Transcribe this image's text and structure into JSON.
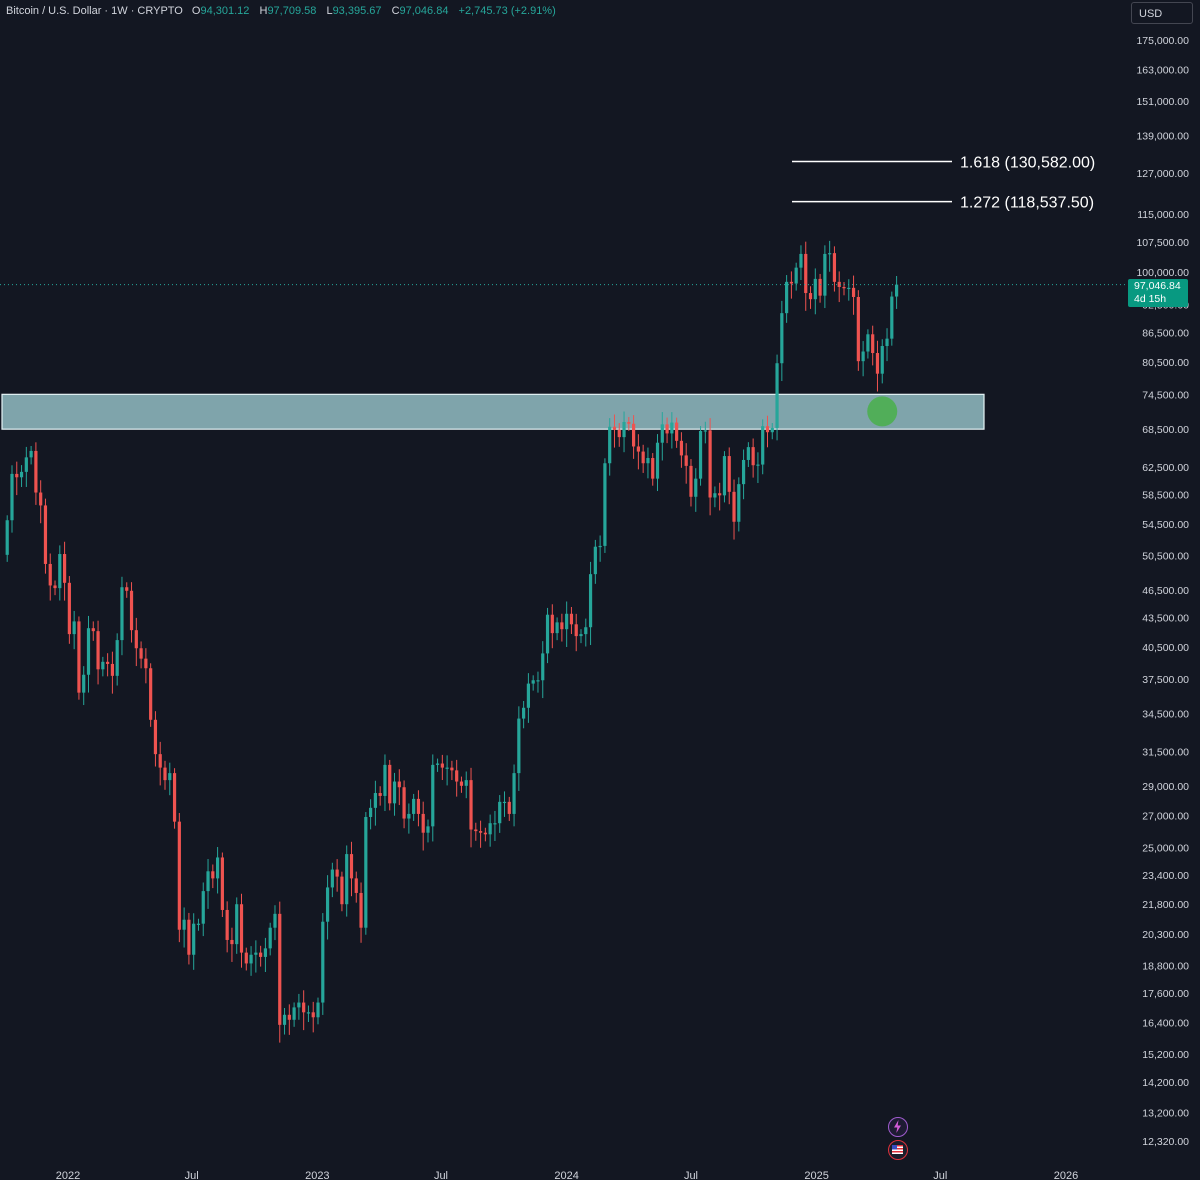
{
  "header": {
    "symbol": "Bitcoin / U.S. Dollar · 1W · CRYPTO",
    "o_label": "O",
    "o_value": "94,301.12",
    "h_label": "H",
    "h_value": "97,709.58",
    "l_label": "L",
    "l_value": "93,395.67",
    "c_label": "C",
    "c_value": "97,046.84",
    "change": "+2,745.73 (+2.91%)"
  },
  "currency_button": "USD",
  "price_tag": {
    "price": "97,046.84",
    "countdown": "4d 15h"
  },
  "icons": [
    "lightning-icon",
    "us-flag-icon"
  ],
  "colors": {
    "background": "#131722",
    "up": "#26a69a",
    "down": "#ef5350",
    "zone": "#a9dbe0",
    "marker": "#4caf50",
    "text": "#d1d4dc"
  },
  "chart_data": {
    "type": "candlestick",
    "title": "",
    "xlabel": "",
    "ylabel": "",
    "y_scale": "log",
    "ylim": [
      11800,
      182000
    ],
    "grid": false,
    "y_ticks": [
      "175,000.00",
      "163,000.00",
      "151,000.00",
      "139,000.00",
      "127,000.00",
      "115,000.00",
      "107,500.00",
      "100,000.00",
      "92,500.00",
      "86,500.00",
      "80,500.00",
      "74,500.00",
      "68,500.00",
      "62,500.00",
      "58,500.00",
      "54,500.00",
      "50,500.00",
      "46,500.00",
      "43,500.00",
      "40,500.00",
      "37,500.00",
      "34,500.00",
      "31,500.00",
      "29,000.00",
      "27,000.00",
      "25,000.00",
      "23,400.00",
      "21,800.00",
      "20,300.00",
      "18,800.00",
      "17,600.00",
      "16,400.00",
      "15,200.00",
      "14,200.00",
      "13,200.00",
      "12,320.00"
    ],
    "x_ticks": [
      {
        "label": "2022",
        "date": "2022-01-01"
      },
      {
        "label": "Jul",
        "date": "2022-07-01"
      },
      {
        "label": "2023",
        "date": "2023-01-01"
      },
      {
        "label": "Jul",
        "date": "2023-07-01"
      },
      {
        "label": "2024",
        "date": "2024-01-01"
      },
      {
        "label": "Jul",
        "date": "2024-07-01"
      },
      {
        "label": "2025",
        "date": "2025-01-01"
      },
      {
        "label": "Jul",
        "date": "2025-07-01"
      },
      {
        "label": "2026",
        "date": "2026-01-01"
      }
    ],
    "fib_levels": [
      {
        "label": "1.618 (130,582.00)",
        "value": 130582
      },
      {
        "label": "1.272 (118,537.50)",
        "value": 118537.5
      }
    ],
    "support_zone": {
      "low": 68500,
      "high": 74500
    },
    "last_price": 97046.84,
    "marker": {
      "date": "2025-04-07",
      "value": 71500
    },
    "series": [
      {
        "date": "2021-10-04",
        "close": 55000
      },
      {
        "date": "2021-10-11",
        "close": 61500
      },
      {
        "date": "2021-10-18",
        "close": 61000
      },
      {
        "date": "2021-10-25",
        "close": 61800
      },
      {
        "date": "2021-11-01",
        "close": 64000
      },
      {
        "date": "2021-11-08",
        "close": 65000
      },
      {
        "date": "2021-11-15",
        "close": 58800
      },
      {
        "date": "2021-11-22",
        "close": 57000
      },
      {
        "date": "2021-11-29",
        "close": 49500
      },
      {
        "date": "2021-12-06",
        "close": 47000
      },
      {
        "date": "2021-12-13",
        "close": 46700
      },
      {
        "date": "2021-12-20",
        "close": 50700
      },
      {
        "date": "2021-12-27",
        "close": 47300
      },
      {
        "date": "2022-01-03",
        "close": 41800
      },
      {
        "date": "2022-01-10",
        "close": 43100
      },
      {
        "date": "2022-01-17",
        "close": 36300
      },
      {
        "date": "2022-01-24",
        "close": 37900
      },
      {
        "date": "2022-01-31",
        "close": 42400
      },
      {
        "date": "2022-02-07",
        "close": 42100
      },
      {
        "date": "2022-02-14",
        "close": 38400
      },
      {
        "date": "2022-02-21",
        "close": 39100
      },
      {
        "date": "2022-02-28",
        "close": 38900
      },
      {
        "date": "2022-03-07",
        "close": 37800
      },
      {
        "date": "2022-03-14",
        "close": 41200
      },
      {
        "date": "2022-03-21",
        "close": 46800
      },
      {
        "date": "2022-03-28",
        "close": 46400
      },
      {
        "date": "2022-04-04",
        "close": 42200
      },
      {
        "date": "2022-04-11",
        "close": 40400
      },
      {
        "date": "2022-04-18",
        "close": 39400
      },
      {
        "date": "2022-04-25",
        "close": 38500
      },
      {
        "date": "2022-05-02",
        "close": 34000
      },
      {
        "date": "2022-05-09",
        "close": 31300
      },
      {
        "date": "2022-05-16",
        "close": 30300
      },
      {
        "date": "2022-05-23",
        "close": 29400
      },
      {
        "date": "2022-05-30",
        "close": 29900
      },
      {
        "date": "2022-06-06",
        "close": 26600
      },
      {
        "date": "2022-06-13",
        "close": 20500
      },
      {
        "date": "2022-06-20",
        "close": 21000
      },
      {
        "date": "2022-06-27",
        "close": 19300
      },
      {
        "date": "2022-07-04",
        "close": 20800
      },
      {
        "date": "2022-07-11",
        "close": 20800
      },
      {
        "date": "2022-07-18",
        "close": 22500
      },
      {
        "date": "2022-07-25",
        "close": 23600
      },
      {
        "date": "2022-08-01",
        "close": 23200
      },
      {
        "date": "2022-08-08",
        "close": 24400
      },
      {
        "date": "2022-08-15",
        "close": 21500
      },
      {
        "date": "2022-08-22",
        "close": 20000
      },
      {
        "date": "2022-08-29",
        "close": 19800
      },
      {
        "date": "2022-09-05",
        "close": 21800
      },
      {
        "date": "2022-09-12",
        "close": 19400
      },
      {
        "date": "2022-09-19",
        "close": 18900
      },
      {
        "date": "2022-09-26",
        "close": 19300
      },
      {
        "date": "2022-10-03",
        "close": 19400
      },
      {
        "date": "2022-10-10",
        "close": 19200
      },
      {
        "date": "2022-10-17",
        "close": 19600
      },
      {
        "date": "2022-10-24",
        "close": 20600
      },
      {
        "date": "2022-10-31",
        "close": 21300
      },
      {
        "date": "2022-11-07",
        "close": 16300
      },
      {
        "date": "2022-11-14",
        "close": 16700
      },
      {
        "date": "2022-11-21",
        "close": 16500
      },
      {
        "date": "2022-11-28",
        "close": 17000
      },
      {
        "date": "2022-12-05",
        "close": 17200
      },
      {
        "date": "2022-12-12",
        "close": 16800
      },
      {
        "date": "2022-12-19",
        "close": 16800
      },
      {
        "date": "2022-12-26",
        "close": 16600
      },
      {
        "date": "2023-01-02",
        "close": 17200
      },
      {
        "date": "2023-01-09",
        "close": 20900
      },
      {
        "date": "2023-01-16",
        "close": 22700
      },
      {
        "date": "2023-01-23",
        "close": 23700
      },
      {
        "date": "2023-01-30",
        "close": 23300
      },
      {
        "date": "2023-02-06",
        "close": 21800
      },
      {
        "date": "2023-02-13",
        "close": 24600
      },
      {
        "date": "2023-02-20",
        "close": 23200
      },
      {
        "date": "2023-02-27",
        "close": 22400
      },
      {
        "date": "2023-03-06",
        "close": 20600
      },
      {
        "date": "2023-03-13",
        "close": 26900
      },
      {
        "date": "2023-03-20",
        "close": 27500
      },
      {
        "date": "2023-03-27",
        "close": 28500
      },
      {
        "date": "2023-04-03",
        "close": 28300
      },
      {
        "date": "2023-04-10",
        "close": 30500
      },
      {
        "date": "2023-04-17",
        "close": 27800
      },
      {
        "date": "2023-04-24",
        "close": 29300
      },
      {
        "date": "2023-05-01",
        "close": 28900
      },
      {
        "date": "2023-05-08",
        "close": 26800
      },
      {
        "date": "2023-05-15",
        "close": 27100
      },
      {
        "date": "2023-05-22",
        "close": 28100
      },
      {
        "date": "2023-05-29",
        "close": 27100
      },
      {
        "date": "2023-06-05",
        "close": 25900
      },
      {
        "date": "2023-06-12",
        "close": 26300
      },
      {
        "date": "2023-06-19",
        "close": 30500
      },
      {
        "date": "2023-06-26",
        "close": 30600
      },
      {
        "date": "2023-07-03",
        "close": 30300
      },
      {
        "date": "2023-07-10",
        "close": 30300
      },
      {
        "date": "2023-07-17",
        "close": 30100
      },
      {
        "date": "2023-07-24",
        "close": 29300
      },
      {
        "date": "2023-07-31",
        "close": 29000
      },
      {
        "date": "2023-08-07",
        "close": 29400
      },
      {
        "date": "2023-08-14",
        "close": 26100
      },
      {
        "date": "2023-08-21",
        "close": 26000
      },
      {
        "date": "2023-08-28",
        "close": 25900
      },
      {
        "date": "2023-09-04",
        "close": 25800
      },
      {
        "date": "2023-09-11",
        "close": 26500
      },
      {
        "date": "2023-09-18",
        "close": 26500
      },
      {
        "date": "2023-09-25",
        "close": 27900
      },
      {
        "date": "2023-10-02",
        "close": 27900
      },
      {
        "date": "2023-10-09",
        "close": 27100
      },
      {
        "date": "2023-10-16",
        "close": 29900
      },
      {
        "date": "2023-10-23",
        "close": 34100
      },
      {
        "date": "2023-10-30",
        "close": 35000
      },
      {
        "date": "2023-11-06",
        "close": 37100
      },
      {
        "date": "2023-11-13",
        "close": 37400
      },
      {
        "date": "2023-11-20",
        "close": 37400
      },
      {
        "date": "2023-11-27",
        "close": 39900
      },
      {
        "date": "2023-12-04",
        "close": 43800
      },
      {
        "date": "2023-12-11",
        "close": 41900
      },
      {
        "date": "2023-12-18",
        "close": 43000
      },
      {
        "date": "2023-12-25",
        "close": 42300
      },
      {
        "date": "2024-01-01",
        "close": 43900
      },
      {
        "date": "2024-01-08",
        "close": 42800
      },
      {
        "date": "2024-01-15",
        "close": 41600
      },
      {
        "date": "2024-01-22",
        "close": 41800
      },
      {
        "date": "2024-01-29",
        "close": 42500
      },
      {
        "date": "2024-02-05",
        "close": 48300
      },
      {
        "date": "2024-02-12",
        "close": 51600
      },
      {
        "date": "2024-02-19",
        "close": 51700
      },
      {
        "date": "2024-02-26",
        "close": 63100
      },
      {
        "date": "2024-03-04",
        "close": 68900
      },
      {
        "date": "2024-03-11",
        "close": 68400
      },
      {
        "date": "2024-03-18",
        "close": 67200
      },
      {
        "date": "2024-03-25",
        "close": 69700
      },
      {
        "date": "2024-04-01",
        "close": 69400
      },
      {
        "date": "2024-04-08",
        "close": 65700
      },
      {
        "date": "2024-04-15",
        "close": 64900
      },
      {
        "date": "2024-04-22",
        "close": 63100
      },
      {
        "date": "2024-04-29",
        "close": 63900
      },
      {
        "date": "2024-05-06",
        "close": 60800
      },
      {
        "date": "2024-05-13",
        "close": 66300
      },
      {
        "date": "2024-05-20",
        "close": 69300
      },
      {
        "date": "2024-05-27",
        "close": 67800
      },
      {
        "date": "2024-06-03",
        "close": 69600
      },
      {
        "date": "2024-06-10",
        "close": 66600
      },
      {
        "date": "2024-06-17",
        "close": 64300
      },
      {
        "date": "2024-06-24",
        "close": 62700
      },
      {
        "date": "2024-07-01",
        "close": 58200
      },
      {
        "date": "2024-07-08",
        "close": 60800
      },
      {
        "date": "2024-07-15",
        "close": 68200
      },
      {
        "date": "2024-07-22",
        "close": 68300
      },
      {
        "date": "2024-07-29",
        "close": 58100
      },
      {
        "date": "2024-08-05",
        "close": 58700
      },
      {
        "date": "2024-08-12",
        "close": 58400
      },
      {
        "date": "2024-08-19",
        "close": 64200
      },
      {
        "date": "2024-08-26",
        "close": 58900
      },
      {
        "date": "2024-09-02",
        "close": 54800
      },
      {
        "date": "2024-09-09",
        "close": 60000
      },
      {
        "date": "2024-09-16",
        "close": 63600
      },
      {
        "date": "2024-09-23",
        "close": 65600
      },
      {
        "date": "2024-09-30",
        "close": 62800
      },
      {
        "date": "2024-10-07",
        "close": 62900
      },
      {
        "date": "2024-10-14",
        "close": 69000
      },
      {
        "date": "2024-10-21",
        "close": 68000
      },
      {
        "date": "2024-10-28",
        "close": 68700
      },
      {
        "date": "2024-11-04",
        "close": 80300
      },
      {
        "date": "2024-11-11",
        "close": 90600
      },
      {
        "date": "2024-11-18",
        "close": 97700
      },
      {
        "date": "2024-11-25",
        "close": 97300
      },
      {
        "date": "2024-12-02",
        "close": 101100
      },
      {
        "date": "2024-12-09",
        "close": 104500
      },
      {
        "date": "2024-12-16",
        "close": 95100
      },
      {
        "date": "2024-12-23",
        "close": 93700
      },
      {
        "date": "2024-12-30",
        "close": 98400
      },
      {
        "date": "2025-01-06",
        "close": 94500
      },
      {
        "date": "2025-01-13",
        "close": 104500
      },
      {
        "date": "2025-01-20",
        "close": 104700
      },
      {
        "date": "2025-01-27",
        "close": 97700
      },
      {
        "date": "2025-02-03",
        "close": 96500
      },
      {
        "date": "2025-02-10",
        "close": 96200
      },
      {
        "date": "2025-02-17",
        "close": 96300
      },
      {
        "date": "2025-02-24",
        "close": 94200
      },
      {
        "date": "2025-03-03",
        "close": 80700
      },
      {
        "date": "2025-03-10",
        "close": 82600
      },
      {
        "date": "2025-03-17",
        "close": 86100
      },
      {
        "date": "2025-03-24",
        "close": 82300
      },
      {
        "date": "2025-03-31",
        "close": 78300
      },
      {
        "date": "2025-04-07",
        "close": 83700
      },
      {
        "date": "2025-04-14",
        "close": 85200
      },
      {
        "date": "2025-04-21",
        "close": 94300
      },
      {
        "date": "2025-04-28",
        "close": 97046.84
      }
    ]
  }
}
